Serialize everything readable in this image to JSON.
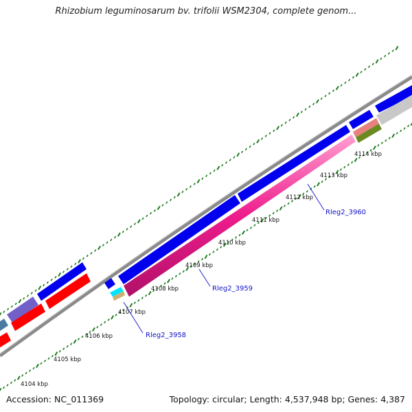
{
  "title": "Rhizobium leguminosarum bv. trifolii WSM2304, complete genom...",
  "footer": {
    "accession": "Accession: NC_011369",
    "summary": "Topology: circular; Length: 4,537,948 bp; Genes: 4,387"
  },
  "ticks": [
    "4104 kbp",
    "4105 kbp",
    "4106 kbp",
    "4107 kbp",
    "4108 kbp",
    "4109 kbp",
    "4110 kbp",
    "4111 kbp",
    "4112 kbp",
    "4113 kbp",
    "4114 kbp"
  ],
  "gene_labels": [
    "Rleg2_3958",
    "Rleg2_3959",
    "Rleg2_3960"
  ],
  "colors": {
    "backbone": "#8c8c8c",
    "cds_forward": "#0000ee",
    "cds_reverse": "#ff0000",
    "gene_pink": "#ee1c8c",
    "gene_violet": "#7060c8",
    "dots": "#1a7a1a"
  }
}
